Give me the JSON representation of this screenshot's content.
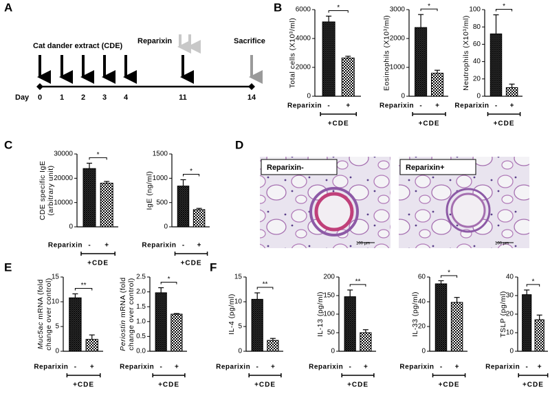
{
  "panel_labels": [
    "A",
    "B",
    "C",
    "D",
    "E",
    "F"
  ],
  "timeline": {
    "day_label": "Day",
    "days": [
      0,
      1,
      2,
      3,
      4,
      11,
      14
    ],
    "cde_label": "Cat dander extract (CDE)",
    "reparixin_label": "Reparixin",
    "sacrifice_label": "Sacrifice"
  },
  "histology": [
    {
      "label": "Reparixin-",
      "scale": "100 µm"
    },
    {
      "label": "Reparixin+",
      "scale": "100 µm"
    }
  ],
  "bar_styles": [
    "crosshatch",
    "checker"
  ],
  "chart_data": [
    {
      "type": "bar",
      "y_label": [
        [
          {
            "text": "Total cells (X10³/ml)"
          }
        ]
      ],
      "x_label": "Reparixin",
      "group_label": "+CDE",
      "categories": [
        "-",
        "+"
      ],
      "values": [
        5150,
        2650
      ],
      "errors": [
        400,
        120
      ],
      "significance": "*",
      "ylim": [
        0,
        6000
      ],
      "yticks": [
        0,
        2000,
        4000,
        6000
      ]
    },
    {
      "type": "bar",
      "y_label": [
        [
          {
            "text": "Eosinophils (X10³/ml)"
          }
        ]
      ],
      "x_label": "Reparixin",
      "group_label": "+CDE",
      "categories": [
        "-",
        "+"
      ],
      "values": [
        2380,
        800
      ],
      "errors": [
        450,
        100
      ],
      "significance": "*",
      "ylim": [
        0,
        3000
      ],
      "yticks": [
        0,
        1000,
        2000,
        3000
      ]
    },
    {
      "type": "bar",
      "y_label": [
        [
          {
            "text": "Neutrophils (X10³/ml)"
          }
        ]
      ],
      "x_label": "Reparixin",
      "group_label": "+CDE",
      "categories": [
        "-",
        "+"
      ],
      "values": [
        72,
        10
      ],
      "errors": [
        22,
        4
      ],
      "significance": "*",
      "ylim": [
        0,
        100
      ],
      "yticks": [
        0,
        20,
        40,
        60,
        80,
        100
      ]
    },
    {
      "type": "bar",
      "y_label": [
        [
          {
            "text": "CDE specific IgE"
          }
        ],
        [
          {
            "text": "(arbitrary unit)"
          }
        ]
      ],
      "x_label": "Reparixin",
      "group_label": "+CDE",
      "categories": [
        "-",
        "+"
      ],
      "values": [
        24000,
        18000
      ],
      "errors": [
        2200,
        700
      ],
      "significance": "*",
      "ylim": [
        0,
        30000
      ],
      "yticks": [
        0,
        10000,
        20000,
        30000
      ]
    },
    {
      "type": "bar",
      "y_label": [
        [
          {
            "text": "IgE (ng/ml)"
          }
        ]
      ],
      "x_label": "Reparixin",
      "group_label": "+CDE",
      "categories": [
        "-",
        "+"
      ],
      "values": [
        840,
        355
      ],
      "errors": [
        130,
        25
      ],
      "significance": "*",
      "ylim": [
        0,
        1500
      ],
      "yticks": [
        0,
        500,
        1000,
        1500
      ]
    },
    {
      "type": "bar",
      "y_label": [
        [
          {
            "text": "Muc5ac",
            "italic": true
          },
          {
            "text": " mRNA (fold"
          }
        ],
        [
          {
            "text": "change over control)"
          }
        ]
      ],
      "x_label": "Reparixin",
      "group_label": "+CDE",
      "categories": [
        "-",
        "+"
      ],
      "values": [
        10.8,
        2.4
      ],
      "errors": [
        0.8,
        0.9
      ],
      "significance": "**",
      "ylim": [
        0,
        15
      ],
      "yticks": [
        0,
        5,
        10,
        15
      ]
    },
    {
      "type": "bar",
      "y_label": [
        [
          {
            "text": "Periostin",
            "italic": true
          },
          {
            "text": " mRNA (fold"
          }
        ],
        [
          {
            "text": "change over control)"
          }
        ]
      ],
      "x_label": "Reparixin",
      "group_label": "+CDE",
      "categories": [
        "-",
        "+"
      ],
      "values": [
        1.97,
        1.25
      ],
      "errors": [
        0.17,
        0.02
      ],
      "significance": "*",
      "ylim": [
        0,
        2.5
      ],
      "yticks": [
        {
          "value": 0,
          "label": "0.0"
        },
        0.5,
        {
          "value": 1,
          "label": "1.0"
        },
        1.5,
        {
          "value": 2,
          "label": "2.0"
        },
        2.5
      ]
    },
    {
      "type": "bar",
      "y_label": [
        [
          {
            "text": "IL-4 (pg/ml)"
          }
        ]
      ],
      "x_label": "Reparixin",
      "group_label": "+CDE",
      "categories": [
        "-",
        "+"
      ],
      "values": [
        10.5,
        2.2
      ],
      "errors": [
        1.3,
        0.4
      ],
      "significance": "**",
      "ylim": [
        0,
        15
      ],
      "yticks": [
        0,
        5,
        10,
        15
      ]
    },
    {
      "type": "bar",
      "y_label": [
        [
          {
            "text": "IL-13 (pg/ml)"
          }
        ]
      ],
      "x_label": "Reparixin",
      "group_label": "+CDE",
      "categories": [
        "-",
        "+"
      ],
      "values": [
        147,
        50
      ],
      "errors": [
        18,
        8
      ],
      "significance": "**",
      "ylim": [
        0,
        200
      ],
      "yticks": [
        0,
        50,
        100,
        150,
        200
      ]
    },
    {
      "type": "bar",
      "y_label": [
        [
          {
            "text": "IL-33 (pg/ml)"
          }
        ]
      ],
      "x_label": "Reparixin",
      "group_label": "+CDE",
      "categories": [
        "-",
        "+"
      ],
      "values": [
        54.5,
        39.5
      ],
      "errors": [
        2.5,
        4
      ],
      "significance": "*",
      "ylim": [
        0,
        60
      ],
      "yticks": [
        0,
        20,
        40,
        60
      ]
    },
    {
      "type": "bar",
      "y_label": [
        [
          {
            "text": "TSLP (pg/ml)"
          }
        ]
      ],
      "x_label": "Reparixin",
      "group_label": "+CDE",
      "categories": [
        "-",
        "+"
      ],
      "values": [
        30.5,
        17
      ],
      "errors": [
        2.5,
        2.5
      ],
      "significance": "*",
      "ylim": [
        0,
        40
      ],
      "yticks": [
        0,
        10,
        20,
        30,
        40
      ]
    }
  ]
}
